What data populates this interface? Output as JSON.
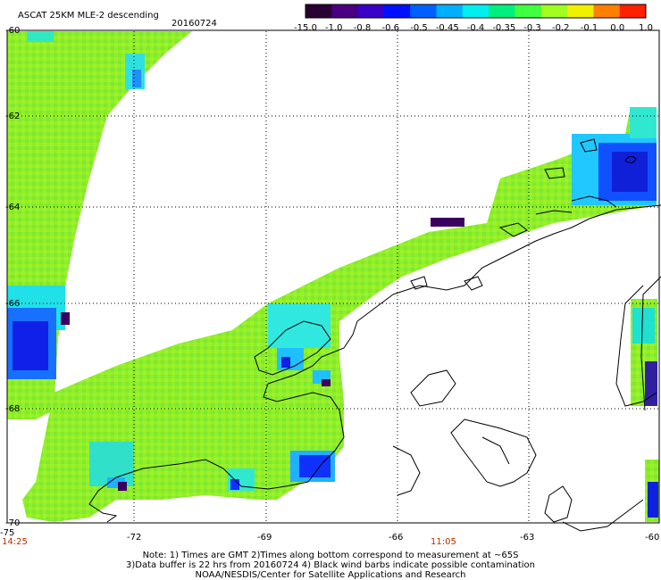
{
  "title": "ASCAT 25KM MLE-2 descending",
  "date": "20160724",
  "colorbar": {
    "labels": [
      "-15.0",
      "-1.0",
      "-0.8",
      "-0.6",
      "-0.5",
      "-0.45",
      "-0.4",
      "-0.35",
      "-0.3",
      "-0.2",
      "-0.1",
      "0.0",
      "1.0"
    ],
    "colors": [
      "#2a0033",
      "#4a0080",
      "#3a00c8",
      "#0010ff",
      "#0060ff",
      "#00b0ff",
      "#00f0f0",
      "#00f080",
      "#40ff40",
      "#a0ff20",
      "#f0f000",
      "#ff8000",
      "#ff2000"
    ]
  },
  "lat_labels": [
    "-60",
    "-62",
    "-64",
    "-66",
    "-68",
    "-70"
  ],
  "lon_labels": [
    "-72",
    "-69",
    "-66",
    "-63",
    "-60"
  ],
  "corner_lon": "-75",
  "times": [
    "14:25",
    "11:05"
  ],
  "notes": [
    "Note: 1) Times are GMT 2)Times along bottom correspond to measurement at ~65S",
    "3)Data buffer is 22 hrs from 20160724 4) Black wind barbs indicate possible contamination",
    "NOAA/NESDIS/Center for Satellite Applications and Research"
  ]
}
